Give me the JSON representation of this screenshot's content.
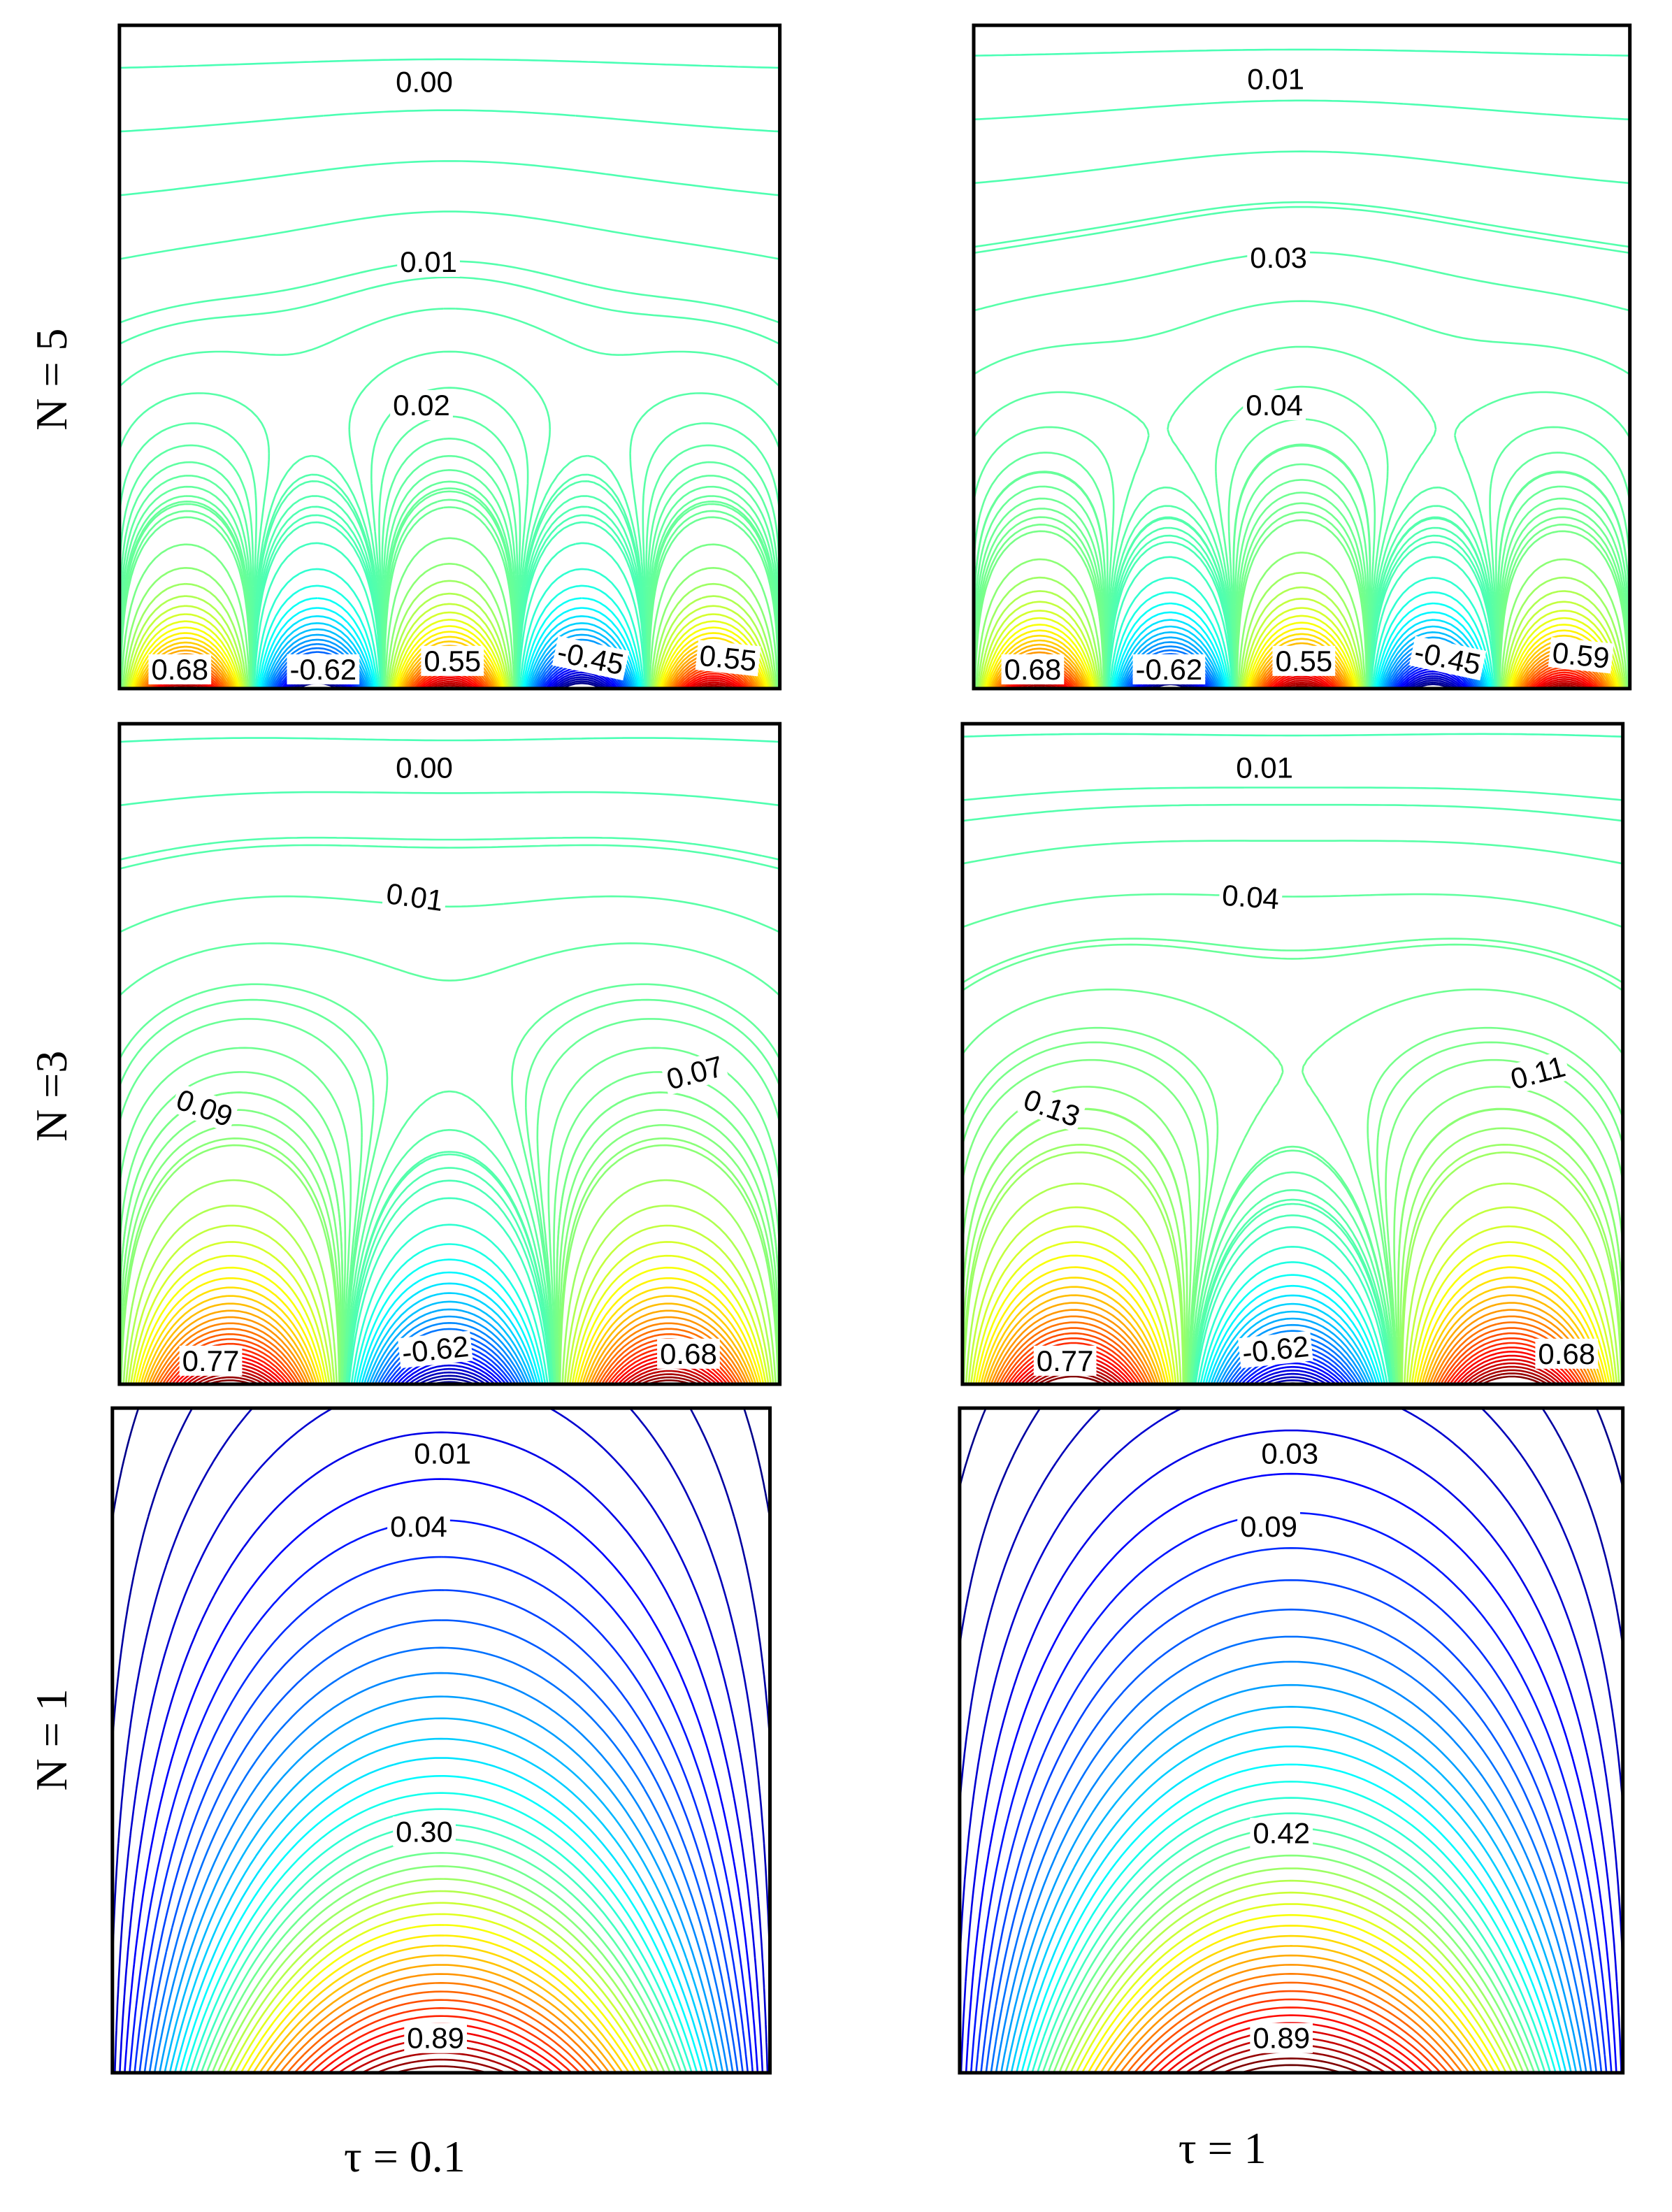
{
  "rows": [
    {
      "label": "N = 5",
      "panels": [
        {
          "contour_labels": [
            "0.00",
            "0.01",
            "0.02",
            "0.68",
            "-0.62",
            "0.55",
            "-0.45",
            "0.55"
          ]
        },
        {
          "contour_labels": [
            "0.01",
            "0.03",
            "0.04",
            "0.68",
            "-0.62",
            "0.55",
            "-0.45",
            "0.59"
          ]
        }
      ]
    },
    {
      "label": "N =3",
      "panels": [
        {
          "contour_labels": [
            "0.00",
            "0.01",
            "0.09",
            "0.07",
            "0.77",
            "-0.62",
            "0.68"
          ]
        },
        {
          "contour_labels": [
            "0.01",
            "0.04",
            "0.13",
            "0.11",
            "0.77",
            "-0.62",
            "0.68"
          ]
        }
      ]
    },
    {
      "label": "N = 1",
      "panels": [
        {
          "contour_labels": [
            "0.01",
            "0.04",
            "0.30",
            "0.89"
          ]
        },
        {
          "contour_labels": [
            "0.03",
            "0.09",
            "0.42",
            "0.89"
          ]
        }
      ]
    }
  ],
  "columns": [
    "τ = 0.1",
    "τ = 1"
  ]
}
